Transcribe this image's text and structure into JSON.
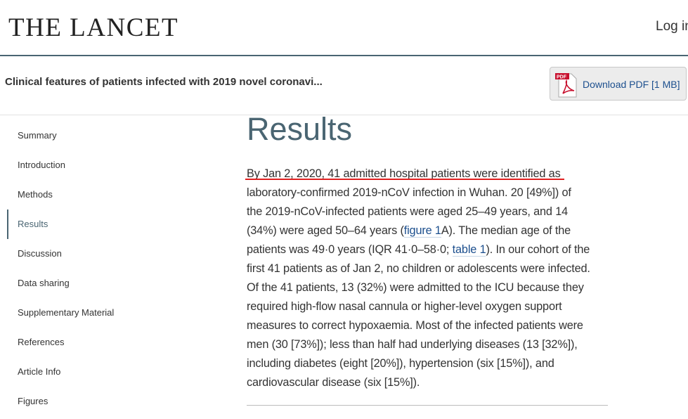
{
  "header": {
    "logo": "THE LANCET",
    "login": "Log in"
  },
  "article_bar": {
    "title": "Clinical features of patients infected with 2019 novel coronavi...",
    "download_label": "Download PDF [1 MB]",
    "pdf_icon_text": "PDF"
  },
  "sidebar": {
    "items": [
      {
        "label": "Summary"
      },
      {
        "label": "Introduction"
      },
      {
        "label": "Methods"
      },
      {
        "label": "Results",
        "active": true
      },
      {
        "label": "Discussion"
      },
      {
        "label": "Data sharing"
      },
      {
        "label": "Supplementary Material"
      },
      {
        "label": "References"
      },
      {
        "label": "Article Info"
      },
      {
        "label": "Figures"
      }
    ]
  },
  "main": {
    "heading": "Results",
    "lines": [
      [
        {
          "t": "By Jan 2, 2020, 41 admitted hospital patients were identified as"
        }
      ],
      [
        {
          "t": "laboratory-confirmed 2019-nCoV infection in Wuhan. 20 [49%]) of"
        }
      ],
      [
        {
          "t": "the 2019-nCoV-infected patients were aged 25–49 years, and 14"
        }
      ],
      [
        {
          "t": "(34%) were aged 50–64 years ("
        },
        {
          "t": "figure 1",
          "link": true
        },
        {
          "t": "A). The median age of the"
        }
      ],
      [
        {
          "t": "patients was 49·0 years (IQR 41·0–58·0; "
        },
        {
          "t": "table 1",
          "link": true
        },
        {
          "t": "). In our cohort of the"
        }
      ],
      [
        {
          "t": "first 41 patients as of Jan 2, no children or adolescents were infected."
        }
      ],
      [
        {
          "t": "Of the 41 patients, 13 (32%) were admitted to the ICU because they"
        }
      ],
      [
        {
          "t": "required high-flow nasal cannula or higher-level oxygen support"
        }
      ],
      [
        {
          "t": "measures to correct hypoxaemia. Most of the infected patients were"
        }
      ],
      [
        {
          "t": "men (30 [73%]); less than half had underlying diseases (13 [32%]),"
        }
      ],
      [
        {
          "t": "including diabetes (eight [20%]), hypertension (six [15%]), and"
        }
      ],
      [
        {
          "t": "cardiovascular disease (six [15%])."
        }
      ]
    ]
  }
}
